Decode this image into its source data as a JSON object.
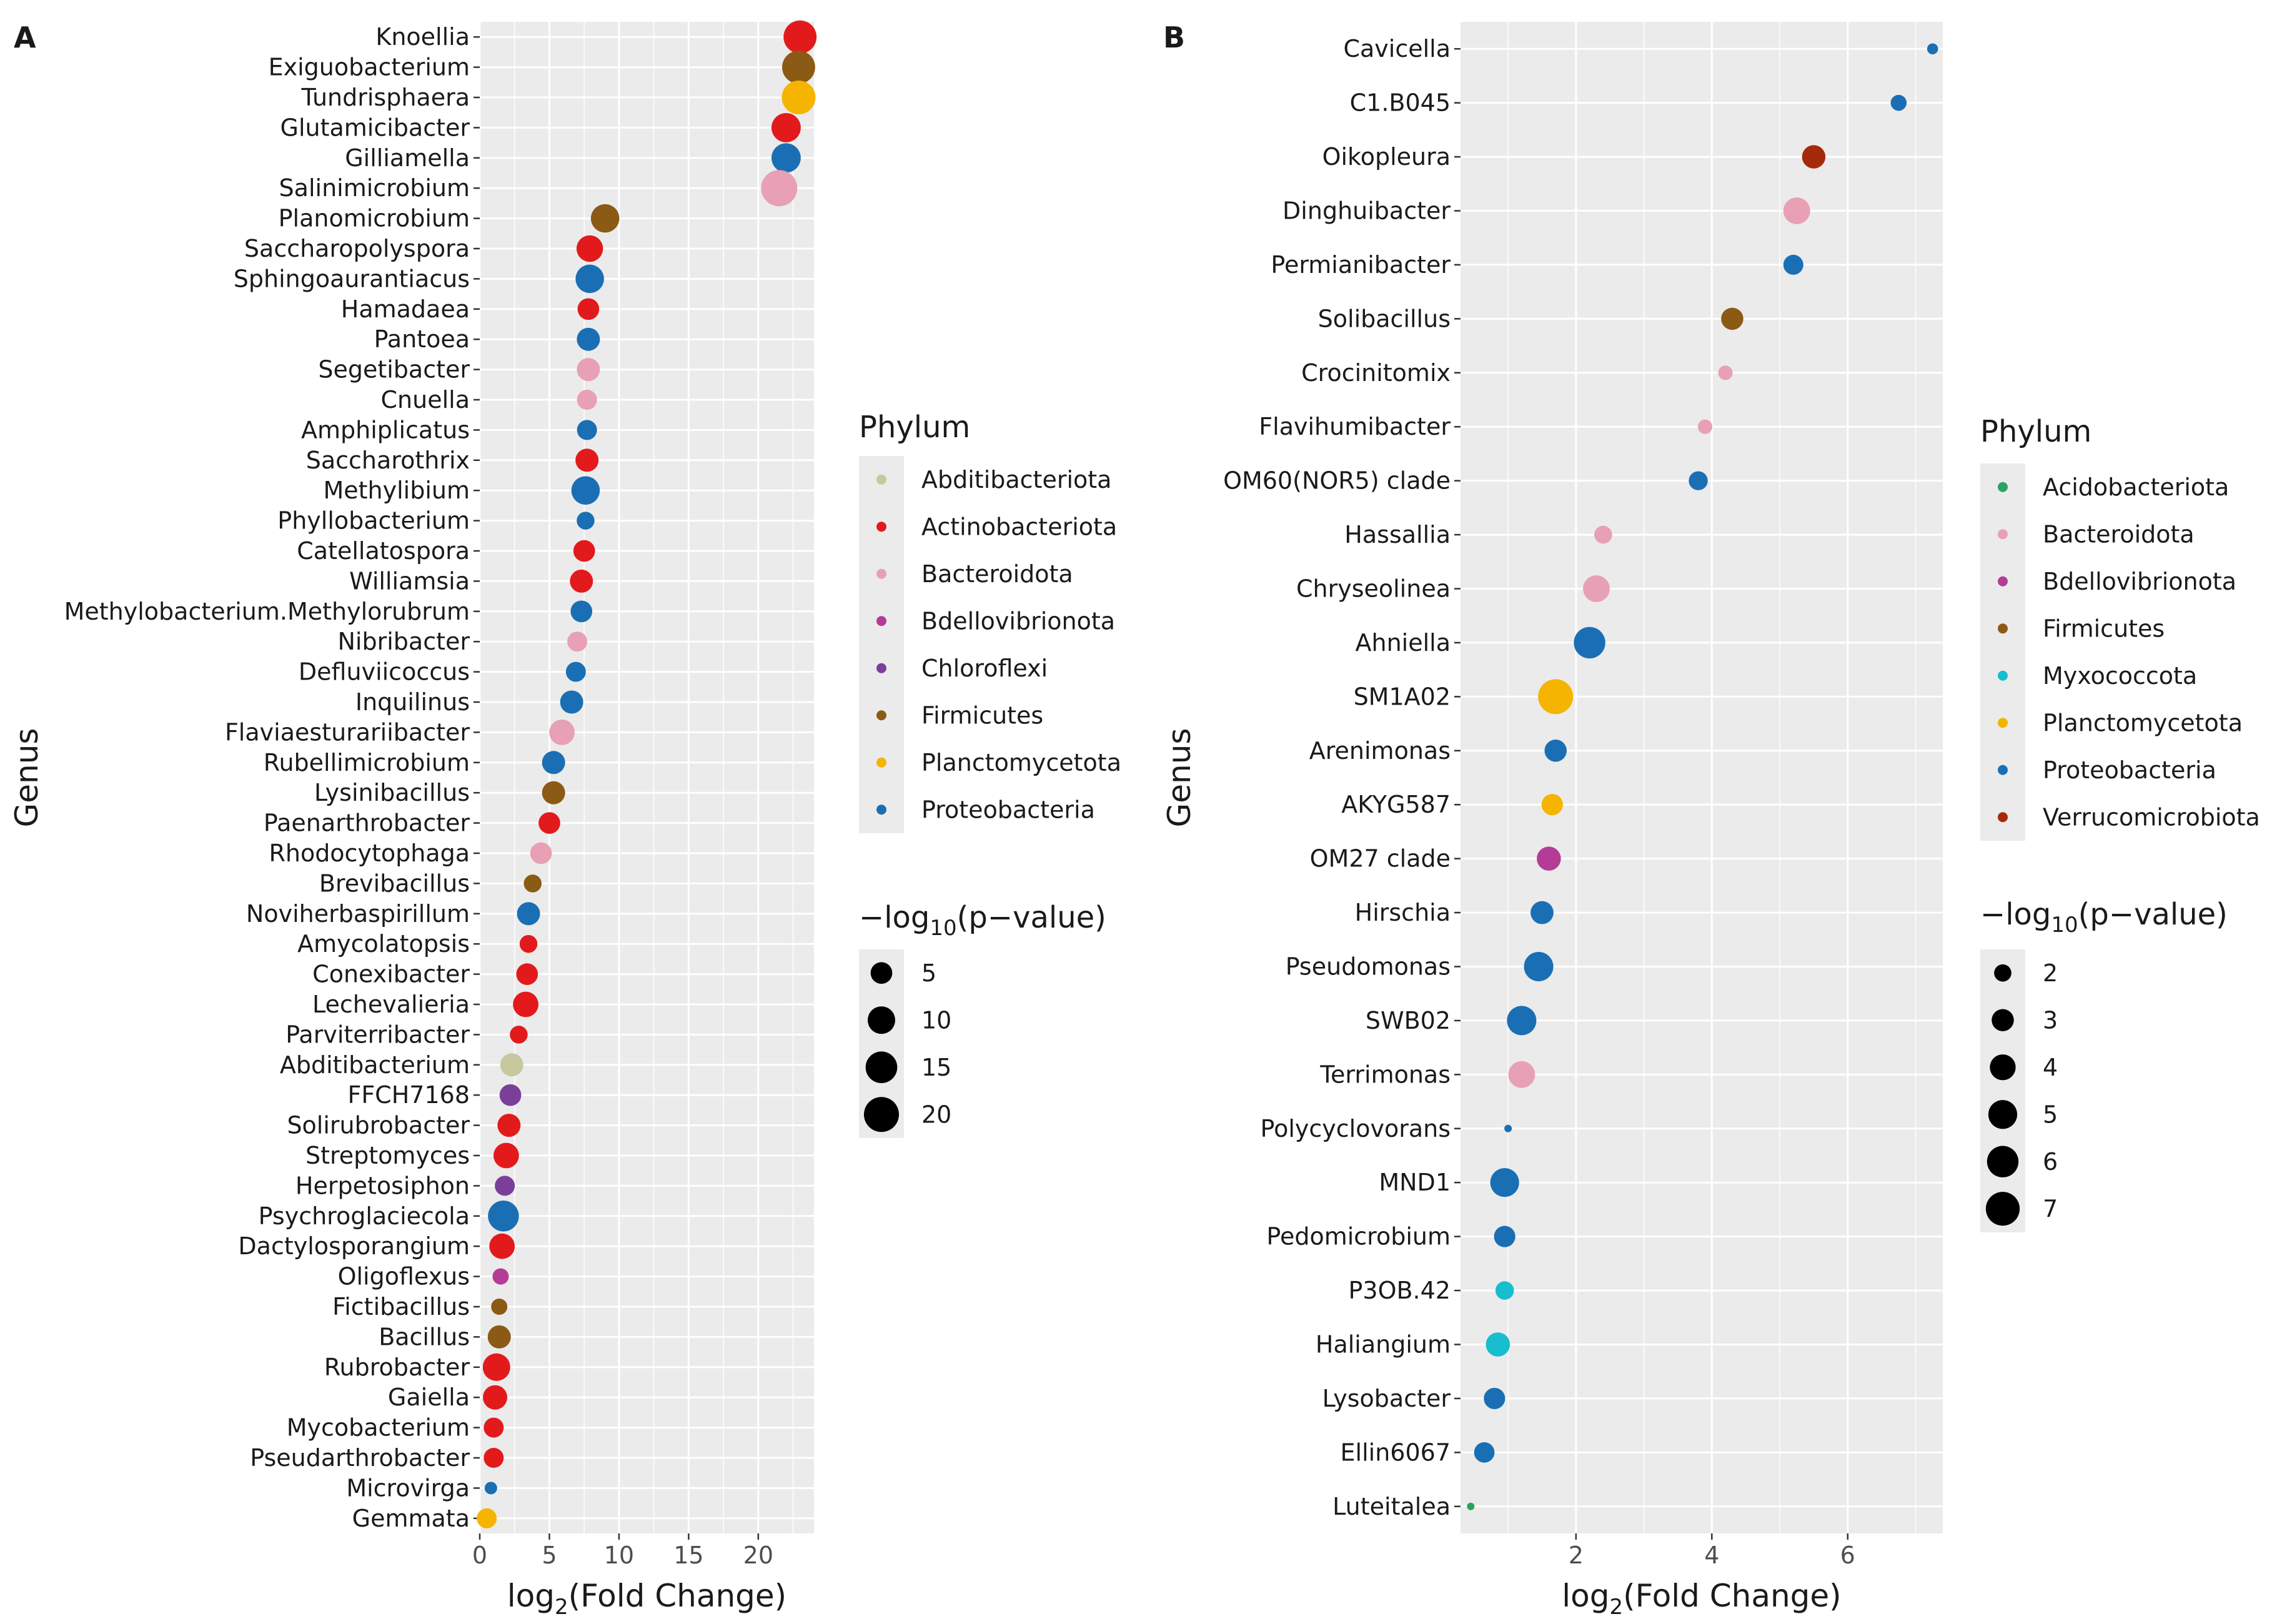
{
  "chart_data": [
    {
      "panel": "A",
      "type": "scatter",
      "xlabel": "log2(Fold Change)",
      "ylabel": "Genus",
      "xlim": [
        0,
        24
      ],
      "xticks": [
        0,
        5,
        10,
        15,
        20
      ],
      "grid": true,
      "phylum_legend": {
        "title": "Phylum",
        "entries": [
          {
            "name": "Abditibacteriota",
            "color": "#c8c8a0"
          },
          {
            "name": "Actinobacteriota",
            "color": "#e31a1c"
          },
          {
            "name": "Bacteroidota",
            "color": "#e8a0b4"
          },
          {
            "name": "Bdellovibrionota",
            "color": "#b43c96"
          },
          {
            "name": "Chloroflexi",
            "color": "#7b3f99"
          },
          {
            "name": "Firmicutes",
            "color": "#8b5a14"
          },
          {
            "name": "Planctomycetota",
            "color": "#f5b400"
          },
          {
            "name": "Proteobacteria",
            "color": "#1a6fb4"
          }
        ]
      },
      "size_legend": {
        "title_prefix": "−log",
        "title_sub": "10",
        "title_suffix": "(p−value)",
        "values": [
          5,
          10,
          15,
          20
        ],
        "min": 2,
        "max": 22
      },
      "points": [
        {
          "genus": "Knoellia",
          "x": 23.0,
          "p": 17,
          "phylum": "Actinobacteriota"
        },
        {
          "genus": "Exiguobacterium",
          "x": 22.9,
          "p": 17,
          "phylum": "Firmicutes"
        },
        {
          "genus": "Tundrisphaera",
          "x": 22.9,
          "p": 18,
          "phylum": "Planctomycetota"
        },
        {
          "genus": "Glutamicibacter",
          "x": 22.0,
          "p": 12,
          "phylum": "Actinobacteriota"
        },
        {
          "genus": "Gilliamella",
          "x": 22.0,
          "p": 12,
          "phylum": "Proteobacteria"
        },
        {
          "genus": "Salinimicrobium",
          "x": 21.5,
          "p": 22,
          "phylum": "Bacteroidota"
        },
        {
          "genus": "Planomicrobium",
          "x": 9.0,
          "p": 11,
          "phylum": "Firmicutes"
        },
        {
          "genus": "Saccharopolyspora",
          "x": 7.9,
          "p": 9,
          "phylum": "Actinobacteriota"
        },
        {
          "genus": "Sphingoaurantiacus",
          "x": 7.9,
          "p": 11,
          "phylum": "Proteobacteria"
        },
        {
          "genus": "Hamadaea",
          "x": 7.8,
          "p": 5,
          "phylum": "Actinobacteriota"
        },
        {
          "genus": "Pantoea",
          "x": 7.8,
          "p": 6,
          "phylum": "Proteobacteria"
        },
        {
          "genus": "Segetibacter",
          "x": 7.8,
          "p": 6,
          "phylum": "Bacteroidota"
        },
        {
          "genus": "Cnuella",
          "x": 7.7,
          "p": 4,
          "phylum": "Bacteroidota"
        },
        {
          "genus": "Amphiplicatus",
          "x": 7.7,
          "p": 4,
          "phylum": "Proteobacteria"
        },
        {
          "genus": "Saccharothrix",
          "x": 7.7,
          "p": 6,
          "phylum": "Actinobacteriota"
        },
        {
          "genus": "Methylibium",
          "x": 7.6,
          "p": 11,
          "phylum": "Proteobacteria"
        },
        {
          "genus": "Phyllobacterium",
          "x": 7.6,
          "p": 3,
          "phylum": "Proteobacteria"
        },
        {
          "genus": "Catellatospora",
          "x": 7.5,
          "p": 5,
          "phylum": "Actinobacteriota"
        },
        {
          "genus": "Williamsia",
          "x": 7.3,
          "p": 6,
          "phylum": "Actinobacteriota"
        },
        {
          "genus": "Methylobacterium.Methylorubrum",
          "x": 7.3,
          "p": 5,
          "phylum": "Proteobacteria"
        },
        {
          "genus": "Nibribacter",
          "x": 7.0,
          "p": 4,
          "phylum": "Bacteroidota"
        },
        {
          "genus": "Defluviicoccus",
          "x": 6.9,
          "p": 4,
          "phylum": "Proteobacteria"
        },
        {
          "genus": "Inquilinus",
          "x": 6.6,
          "p": 6,
          "phylum": "Proteobacteria"
        },
        {
          "genus": "Flaviaesturariibacter",
          "x": 5.9,
          "p": 8,
          "phylum": "Bacteroidota"
        },
        {
          "genus": "Rubellimicrobium",
          "x": 5.3,
          "p": 6,
          "phylum": "Proteobacteria"
        },
        {
          "genus": "Lysinibacillus",
          "x": 5.3,
          "p": 6,
          "phylum": "Firmicutes"
        },
        {
          "genus": "Paenarthrobacter",
          "x": 5.0,
          "p": 5,
          "phylum": "Actinobacteriota"
        },
        {
          "genus": "Rhodocytophaga",
          "x": 4.4,
          "p": 5,
          "phylum": "Bacteroidota"
        },
        {
          "genus": "Brevibacillus",
          "x": 3.8,
          "p": 3,
          "phylum": "Firmicutes"
        },
        {
          "genus": "Noviherbaspirillum",
          "x": 3.5,
          "p": 6,
          "phylum": "Proteobacteria"
        },
        {
          "genus": "Amycolatopsis",
          "x": 3.5,
          "p": 3,
          "phylum": "Actinobacteriota"
        },
        {
          "genus": "Conexibacter",
          "x": 3.4,
          "p": 5,
          "phylum": "Actinobacteriota"
        },
        {
          "genus": "Lechevalieria",
          "x": 3.3,
          "p": 8,
          "phylum": "Actinobacteriota"
        },
        {
          "genus": "Parviterribacter",
          "x": 2.8,
          "p": 3,
          "phylum": "Actinobacteriota"
        },
        {
          "genus": "Abditibacterium",
          "x": 2.3,
          "p": 6,
          "phylum": "Abditibacteriota"
        },
        {
          "genus": "FFCH7168",
          "x": 2.2,
          "p": 5,
          "phylum": "Chloroflexi"
        },
        {
          "genus": "Solirubrobacter",
          "x": 2.1,
          "p": 6,
          "phylum": "Actinobacteriota"
        },
        {
          "genus": "Streptomyces",
          "x": 1.9,
          "p": 8,
          "phylum": "Actinobacteriota"
        },
        {
          "genus": "Herpetosiphon",
          "x": 1.8,
          "p": 4,
          "phylum": "Chloroflexi"
        },
        {
          "genus": "Psychroglaciecola",
          "x": 1.7,
          "p": 14,
          "phylum": "Proteobacteria"
        },
        {
          "genus": "Dactylosporangium",
          "x": 1.6,
          "p": 8,
          "phylum": "Actinobacteriota"
        },
        {
          "genus": "Oligoflexus",
          "x": 1.5,
          "p": 2.5,
          "phylum": "Bdellovibrionota"
        },
        {
          "genus": "Fictibacillus",
          "x": 1.4,
          "p": 2.5,
          "phylum": "Firmicutes"
        },
        {
          "genus": "Bacillus",
          "x": 1.4,
          "p": 6,
          "phylum": "Firmicutes"
        },
        {
          "genus": "Rubrobacter",
          "x": 1.2,
          "p": 10,
          "phylum": "Actinobacteriota"
        },
        {
          "genus": "Gaiella",
          "x": 1.1,
          "p": 7,
          "phylum": "Actinobacteriota"
        },
        {
          "genus": "Mycobacterium",
          "x": 1.0,
          "p": 4,
          "phylum": "Actinobacteriota"
        },
        {
          "genus": "Pseudarthrobacter",
          "x": 1.0,
          "p": 4,
          "phylum": "Actinobacteriota"
        },
        {
          "genus": "Microvirga",
          "x": 0.8,
          "p": 2,
          "phylum": "Proteobacteria"
        },
        {
          "genus": "Gemmata",
          "x": 0.5,
          "p": 4,
          "phylum": "Planctomycetota"
        }
      ]
    },
    {
      "panel": "B",
      "type": "scatter",
      "xlabel": "log2(Fold Change)",
      "ylabel": "Genus",
      "xlim": [
        0.3,
        7.4
      ],
      "xticks": [
        2,
        4,
        6
      ],
      "grid": true,
      "phylum_legend": {
        "title": "Phylum",
        "entries": [
          {
            "name": "Acidobacteriota",
            "color": "#2ca25f"
          },
          {
            "name": "Bacteroidota",
            "color": "#e8a0b4"
          },
          {
            "name": "Bdellovibrionota",
            "color": "#b43c96"
          },
          {
            "name": "Firmicutes",
            "color": "#8b5a14"
          },
          {
            "name": "Myxococcota",
            "color": "#17becf"
          },
          {
            "name": "Planctomycetota",
            "color": "#f5b400"
          },
          {
            "name": "Proteobacteria",
            "color": "#1a6fb4"
          },
          {
            "name": "Verrucomicrobiota",
            "color": "#a52a0a"
          }
        ]
      },
      "size_legend": {
        "title_prefix": "−log",
        "title_sub": "10",
        "title_suffix": "(p−value)",
        "values": [
          2,
          3,
          4,
          5,
          6,
          7
        ],
        "min": 1.2,
        "max": 7.5
      },
      "points": [
        {
          "genus": "Cavicella",
          "x": 7.25,
          "p": 1.3,
          "phylum": "Proteobacteria"
        },
        {
          "genus": "C1.B045",
          "x": 6.75,
          "p": 1.8,
          "phylum": "Proteobacteria"
        },
        {
          "genus": "Oikopleura",
          "x": 5.5,
          "p": 3.3,
          "phylum": "Verrucomicrobiota"
        },
        {
          "genus": "Dinghuibacter",
          "x": 5.25,
          "p": 4.3,
          "phylum": "Bacteroidota"
        },
        {
          "genus": "Permianibacter",
          "x": 5.2,
          "p": 2.5,
          "phylum": "Proteobacteria"
        },
        {
          "genus": "Solibacillus",
          "x": 4.3,
          "p": 3.0,
          "phylum": "Firmicutes"
        },
        {
          "genus": "Crocinitomix",
          "x": 4.2,
          "p": 1.6,
          "phylum": "Bacteroidota"
        },
        {
          "genus": "Flavihumibacter",
          "x": 3.9,
          "p": 1.6,
          "phylum": "Bacteroidota"
        },
        {
          "genus": "OM60(NOR5) clade",
          "x": 3.8,
          "p": 2.3,
          "phylum": "Proteobacteria"
        },
        {
          "genus": "Hassallia",
          "x": 2.4,
          "p": 2.1,
          "phylum": "Bacteroidota"
        },
        {
          "genus": "Chryseolinea",
          "x": 2.3,
          "p": 4.3,
          "phylum": "Bacteroidota"
        },
        {
          "genus": "Ahniella",
          "x": 2.2,
          "p": 6.0,
          "phylum": "Proteobacteria"
        },
        {
          "genus": "SM1A02",
          "x": 1.7,
          "p": 7.5,
          "phylum": "Planctomycetota"
        },
        {
          "genus": "Arenimonas",
          "x": 1.7,
          "p": 3.0,
          "phylum": "Proteobacteria"
        },
        {
          "genus": "AKYG587",
          "x": 1.65,
          "p": 2.8,
          "phylum": "Planctomycetota"
        },
        {
          "genus": "OM27 clade",
          "x": 1.6,
          "p": 3.5,
          "phylum": "Bdellovibrionota"
        },
        {
          "genus": "Hirschia",
          "x": 1.5,
          "p": 3.2,
          "phylum": "Proteobacteria"
        },
        {
          "genus": "Pseudomonas",
          "x": 1.45,
          "p": 5.2,
          "phylum": "Proteobacteria"
        },
        {
          "genus": "SWB02",
          "x": 1.2,
          "p": 5.2,
          "phylum": "Proteobacteria"
        },
        {
          "genus": "Terrimonas",
          "x": 1.2,
          "p": 4.3,
          "phylum": "Bacteroidota"
        },
        {
          "genus": "Polycyclovorans",
          "x": 1.0,
          "p": 1.2,
          "phylum": "Proteobacteria"
        },
        {
          "genus": "MND1",
          "x": 0.95,
          "p": 5.0,
          "phylum": "Proteobacteria"
        },
        {
          "genus": "Pedomicrobium",
          "x": 0.95,
          "p": 2.8,
          "phylum": "Proteobacteria"
        },
        {
          "genus": "P3OB.42",
          "x": 0.95,
          "p": 2.2,
          "phylum": "Myxococcota"
        },
        {
          "genus": "Haliangium",
          "x": 0.85,
          "p": 3.5,
          "phylum": "Myxococcota"
        },
        {
          "genus": "Lysobacter",
          "x": 0.8,
          "p": 2.8,
          "phylum": "Proteobacteria"
        },
        {
          "genus": "Ellin6067",
          "x": 0.65,
          "p": 2.6,
          "phylum": "Proteobacteria"
        },
        {
          "genus": "Luteitalea",
          "x": 0.45,
          "p": 1.2,
          "phylum": "Acidobacteriota"
        }
      ]
    }
  ]
}
